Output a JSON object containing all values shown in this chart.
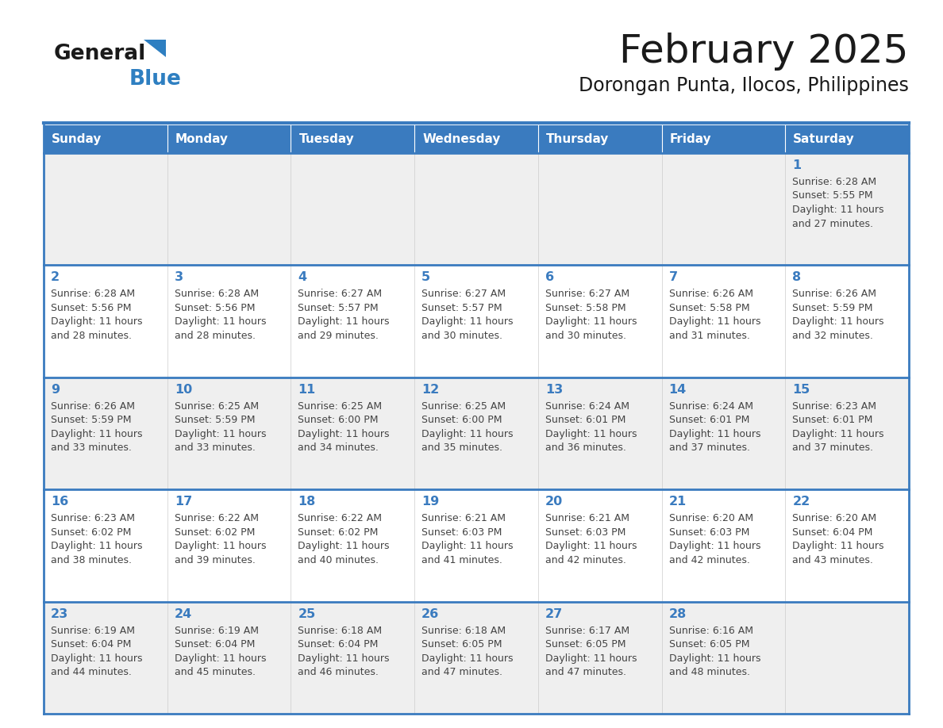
{
  "title": "February 2025",
  "subtitle": "Dorongan Punta, Ilocos, Philippines",
  "days_of_week": [
    "Sunday",
    "Monday",
    "Tuesday",
    "Wednesday",
    "Thursday",
    "Friday",
    "Saturday"
  ],
  "header_bg": "#3a7bbf",
  "header_text": "#ffffff",
  "row_bg_light": "#efefef",
  "row_bg_white": "#ffffff",
  "border_color": "#3a7bbf",
  "day_number_color": "#3a7bbf",
  "text_color": "#444444",
  "calendar_data": [
    [
      null,
      null,
      null,
      null,
      null,
      null,
      {
        "day": 1,
        "sunrise": "6:28 AM",
        "sunset": "5:55 PM",
        "daylight": "11 hours and 27 minutes."
      }
    ],
    [
      {
        "day": 2,
        "sunrise": "6:28 AM",
        "sunset": "5:56 PM",
        "daylight": "11 hours and 28 minutes."
      },
      {
        "day": 3,
        "sunrise": "6:28 AM",
        "sunset": "5:56 PM",
        "daylight": "11 hours and 28 minutes."
      },
      {
        "day": 4,
        "sunrise": "6:27 AM",
        "sunset": "5:57 PM",
        "daylight": "11 hours and 29 minutes."
      },
      {
        "day": 5,
        "sunrise": "6:27 AM",
        "sunset": "5:57 PM",
        "daylight": "11 hours and 30 minutes."
      },
      {
        "day": 6,
        "sunrise": "6:27 AM",
        "sunset": "5:58 PM",
        "daylight": "11 hours and 30 minutes."
      },
      {
        "day": 7,
        "sunrise": "6:26 AM",
        "sunset": "5:58 PM",
        "daylight": "11 hours and 31 minutes."
      },
      {
        "day": 8,
        "sunrise": "6:26 AM",
        "sunset": "5:59 PM",
        "daylight": "11 hours and 32 minutes."
      }
    ],
    [
      {
        "day": 9,
        "sunrise": "6:26 AM",
        "sunset": "5:59 PM",
        "daylight": "11 hours and 33 minutes."
      },
      {
        "day": 10,
        "sunrise": "6:25 AM",
        "sunset": "5:59 PM",
        "daylight": "11 hours and 33 minutes."
      },
      {
        "day": 11,
        "sunrise": "6:25 AM",
        "sunset": "6:00 PM",
        "daylight": "11 hours and 34 minutes."
      },
      {
        "day": 12,
        "sunrise": "6:25 AM",
        "sunset": "6:00 PM",
        "daylight": "11 hours and 35 minutes."
      },
      {
        "day": 13,
        "sunrise": "6:24 AM",
        "sunset": "6:01 PM",
        "daylight": "11 hours and 36 minutes."
      },
      {
        "day": 14,
        "sunrise": "6:24 AM",
        "sunset": "6:01 PM",
        "daylight": "11 hours and 37 minutes."
      },
      {
        "day": 15,
        "sunrise": "6:23 AM",
        "sunset": "6:01 PM",
        "daylight": "11 hours and 37 minutes."
      }
    ],
    [
      {
        "day": 16,
        "sunrise": "6:23 AM",
        "sunset": "6:02 PM",
        "daylight": "11 hours and 38 minutes."
      },
      {
        "day": 17,
        "sunrise": "6:22 AM",
        "sunset": "6:02 PM",
        "daylight": "11 hours and 39 minutes."
      },
      {
        "day": 18,
        "sunrise": "6:22 AM",
        "sunset": "6:02 PM",
        "daylight": "11 hours and 40 minutes."
      },
      {
        "day": 19,
        "sunrise": "6:21 AM",
        "sunset": "6:03 PM",
        "daylight": "11 hours and 41 minutes."
      },
      {
        "day": 20,
        "sunrise": "6:21 AM",
        "sunset": "6:03 PM",
        "daylight": "11 hours and 42 minutes."
      },
      {
        "day": 21,
        "sunrise": "6:20 AM",
        "sunset": "6:03 PM",
        "daylight": "11 hours and 42 minutes."
      },
      {
        "day": 22,
        "sunrise": "6:20 AM",
        "sunset": "6:04 PM",
        "daylight": "11 hours and 43 minutes."
      }
    ],
    [
      {
        "day": 23,
        "sunrise": "6:19 AM",
        "sunset": "6:04 PM",
        "daylight": "11 hours and 44 minutes."
      },
      {
        "day": 24,
        "sunrise": "6:19 AM",
        "sunset": "6:04 PM",
        "daylight": "11 hours and 45 minutes."
      },
      {
        "day": 25,
        "sunrise": "6:18 AM",
        "sunset": "6:04 PM",
        "daylight": "11 hours and 46 minutes."
      },
      {
        "day": 26,
        "sunrise": "6:18 AM",
        "sunset": "6:05 PM",
        "daylight": "11 hours and 47 minutes."
      },
      {
        "day": 27,
        "sunrise": "6:17 AM",
        "sunset": "6:05 PM",
        "daylight": "11 hours and 47 minutes."
      },
      {
        "day": 28,
        "sunrise": "6:16 AM",
        "sunset": "6:05 PM",
        "daylight": "11 hours and 48 minutes."
      },
      null
    ]
  ],
  "logo_text1": "General",
  "logo_text2": "Blue",
  "logo_text1_color": "#1a1a1a",
  "logo_text2_color": "#2e7fc1",
  "logo_triangle_color": "#2e7fc1"
}
